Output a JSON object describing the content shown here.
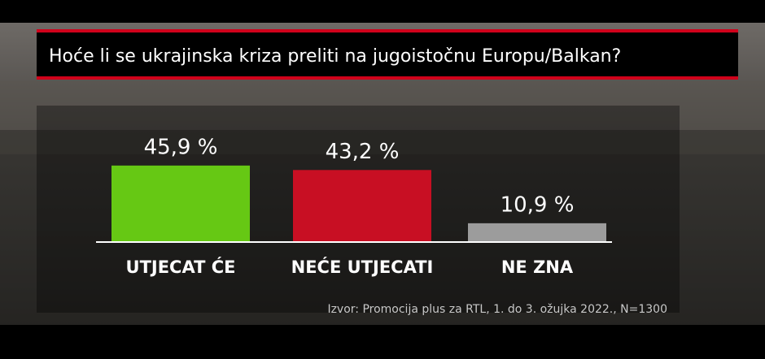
{
  "chart_data": {
    "type": "bar",
    "title": "Hoće li se ukrajinska kriza preliti na jugoistočnu Europu/Balkan?",
    "categories": [
      "UTJECAT ĆE",
      "NEĆE UTJECATI",
      "NE ZNA"
    ],
    "values": [
      45.9,
      43.2,
      10.9
    ],
    "value_labels": [
      "45,9 %",
      "43,2 %",
      "10,9 %"
    ],
    "colors": [
      "#66c814",
      "#c80f23",
      "#9c9c9c"
    ],
    "source": "Izvor: Promocija plus za RTL, 1. do 3. ožujka 2022., N=1300"
  }
}
